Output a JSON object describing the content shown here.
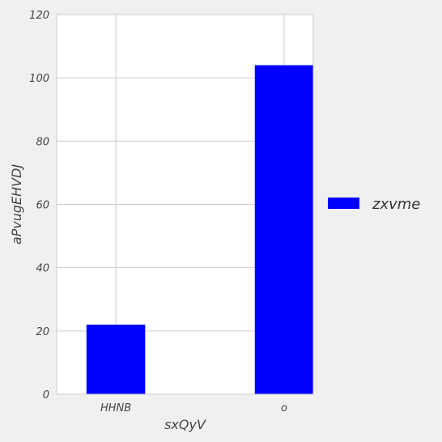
{
  "chart_data": {
    "type": "bar",
    "title": "",
    "xlabel": "sxQyV",
    "ylabel": "aPvugEHVDJ",
    "categories": [
      "HHNB",
      "o"
    ],
    "series": [
      {
        "name": "zxvme",
        "values": [
          22,
          104
        ],
        "color": "#0000ff"
      }
    ],
    "ylim": [
      0,
      120
    ],
    "yticks": [
      0,
      20,
      40,
      60,
      80,
      100,
      120
    ],
    "grid": true,
    "legend_position": "right"
  },
  "colors": {
    "background": "#f0f0f0",
    "plot_background": "#ffffff",
    "grid": "#cccccc"
  }
}
